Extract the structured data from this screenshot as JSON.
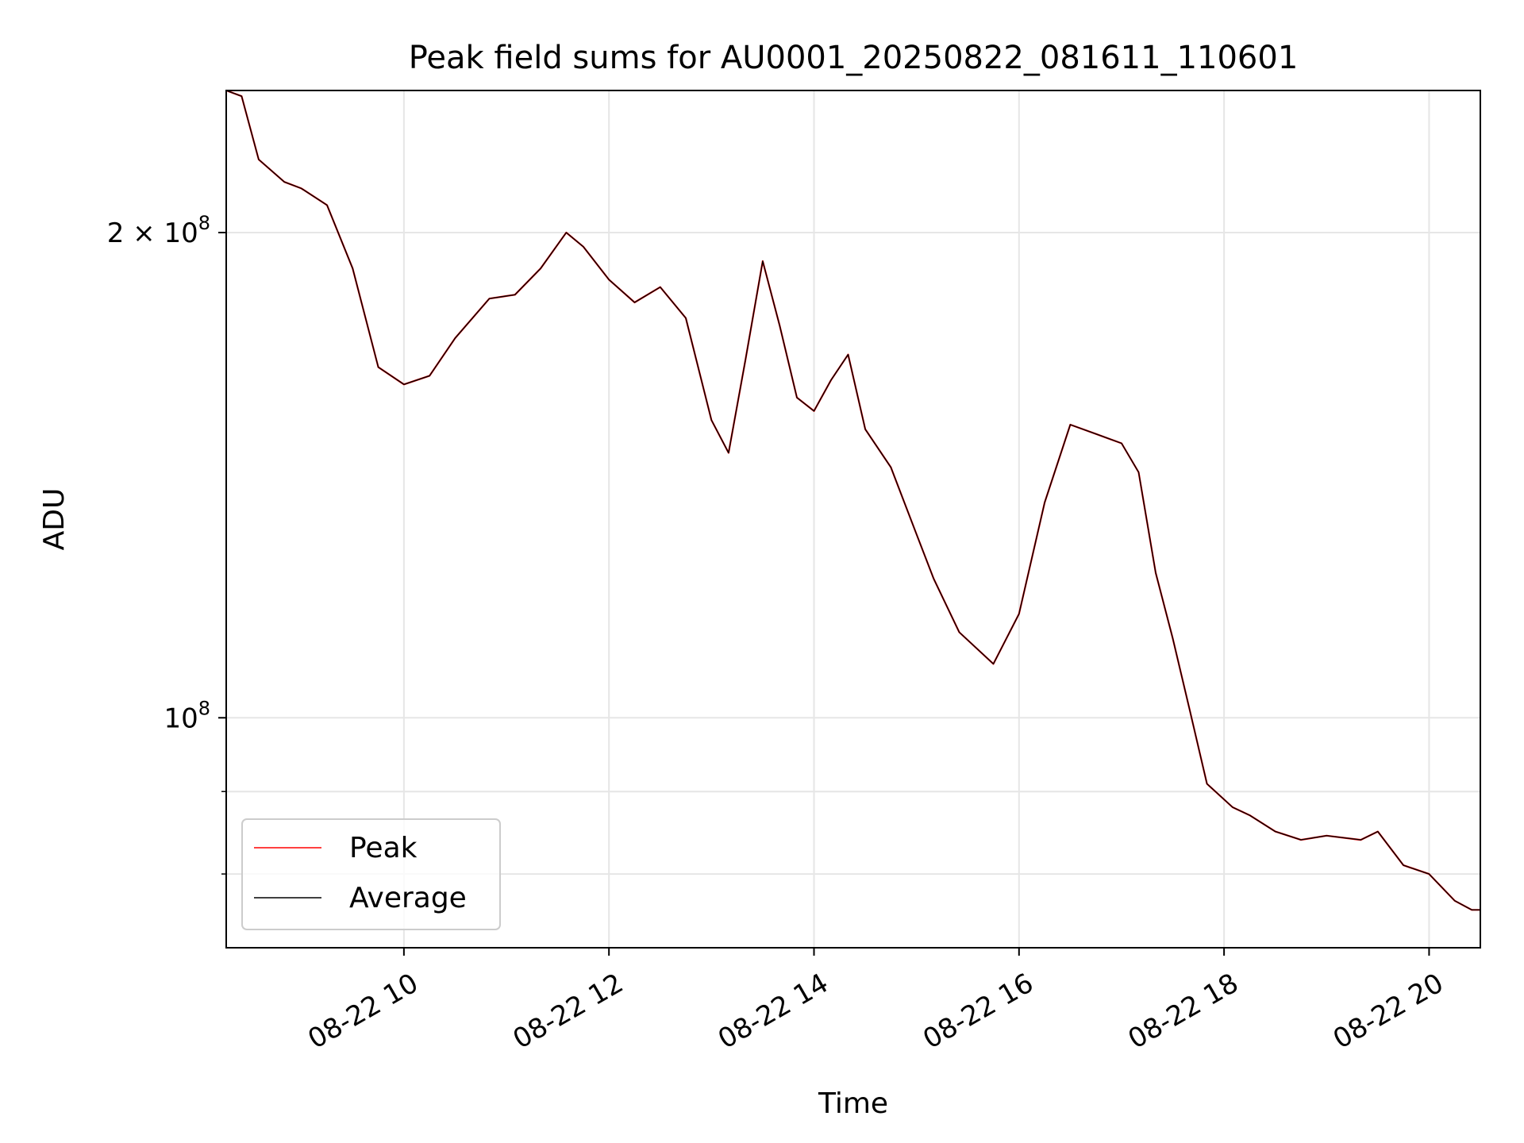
{
  "chart_data": {
    "type": "line",
    "title": "Peak field sums for AU0001_20250822_081611_110601",
    "xlabel": "Time",
    "ylabel": "ADU",
    "y_scale": "log",
    "xlim": [
      "2025-08-22 08:16",
      "2025-08-22 20:30"
    ],
    "ylim": [
      72000000,
      245000000
    ],
    "x_ticks": [
      "2025-08-22 10:00",
      "2025-08-22 12:00",
      "2025-08-22 14:00",
      "2025-08-22 16:00",
      "2025-08-22 18:00",
      "2025-08-22 20:00"
    ],
    "x_tick_labels": [
      "08-22 10",
      "08-22 12",
      "08-22 14",
      "08-22 16",
      "08-22 18",
      "08-22 20"
    ],
    "y_major_ticks": [
      100000000,
      200000000
    ],
    "y_tick_labels": [
      {
        "value": 200000000,
        "mantissa": "2",
        "times": "×",
        "base": "10",
        "exp": "8"
      },
      {
        "value": 100000000,
        "mantissa": "",
        "times": "",
        "base": "10",
        "exp": "8"
      }
    ],
    "y_minor_ticks": [
      80000000,
      90000000
    ],
    "grid": true,
    "legend_position": "lower-left",
    "series": [
      {
        "name": "Peak",
        "color": "#ff0000",
        "points": [
          [
            "2025-08-22 08:16",
            245000000
          ],
          [
            "2025-08-22 08:25",
            243000000
          ],
          [
            "2025-08-22 08:35",
            222000000
          ],
          [
            "2025-08-22 08:50",
            215000000
          ],
          [
            "2025-08-22 09:00",
            213000000
          ],
          [
            "2025-08-22 09:15",
            208000000
          ],
          [
            "2025-08-22 09:30",
            190000000
          ],
          [
            "2025-08-22 09:45",
            165000000
          ],
          [
            "2025-08-22 10:00",
            161000000
          ],
          [
            "2025-08-22 10:15",
            163000000
          ],
          [
            "2025-08-22 10:30",
            172000000
          ],
          [
            "2025-08-22 10:50",
            182000000
          ],
          [
            "2025-08-22 11:05",
            183000000
          ],
          [
            "2025-08-22 11:20",
            190000000
          ],
          [
            "2025-08-22 11:35",
            200000000
          ],
          [
            "2025-08-22 11:45",
            196000000
          ],
          [
            "2025-08-22 12:00",
            187000000
          ],
          [
            "2025-08-22 12:15",
            181000000
          ],
          [
            "2025-08-22 12:30",
            185000000
          ],
          [
            "2025-08-22 12:45",
            177000000
          ],
          [
            "2025-08-22 13:00",
            153000000
          ],
          [
            "2025-08-22 13:10",
            146000000
          ],
          [
            "2025-08-22 13:20",
            167000000
          ],
          [
            "2025-08-22 13:30",
            192000000
          ],
          [
            "2025-08-22 13:40",
            175000000
          ],
          [
            "2025-08-22 13:50",
            158000000
          ],
          [
            "2025-08-22 14:00",
            155000000
          ],
          [
            "2025-08-22 14:10",
            162000000
          ],
          [
            "2025-08-22 14:20",
            168000000
          ],
          [
            "2025-08-22 14:30",
            151000000
          ],
          [
            "2025-08-22 14:45",
            143000000
          ],
          [
            "2025-08-22 15:00",
            130000000
          ],
          [
            "2025-08-22 15:10",
            122000000
          ],
          [
            "2025-08-22 15:25",
            113000000
          ],
          [
            "2025-08-22 15:45",
            108000000
          ],
          [
            "2025-08-22 16:00",
            116000000
          ],
          [
            "2025-08-22 16:15",
            136000000
          ],
          [
            "2025-08-22 16:30",
            152000000
          ],
          [
            "2025-08-22 16:45",
            150000000
          ],
          [
            "2025-08-22 17:00",
            148000000
          ],
          [
            "2025-08-22 17:10",
            142000000
          ],
          [
            "2025-08-22 17:20",
            123000000
          ],
          [
            "2025-08-22 17:30",
            112000000
          ],
          [
            "2025-08-22 17:40",
            101000000
          ],
          [
            "2025-08-22 17:50",
            91000000
          ],
          [
            "2025-08-22 18:05",
            88000000
          ],
          [
            "2025-08-22 18:15",
            87000000
          ],
          [
            "2025-08-22 18:30",
            85000000
          ],
          [
            "2025-08-22 18:45",
            84000000
          ],
          [
            "2025-08-22 19:00",
            84500000
          ],
          [
            "2025-08-22 19:20",
            84000000
          ],
          [
            "2025-08-22 19:30",
            85000000
          ],
          [
            "2025-08-22 19:45",
            81000000
          ],
          [
            "2025-08-22 20:00",
            80000000
          ],
          [
            "2025-08-22 20:15",
            77000000
          ],
          [
            "2025-08-22 20:25",
            76000000
          ],
          [
            "2025-08-22 20:30",
            76000000
          ]
        ]
      },
      {
        "name": "Average",
        "color": "#000000",
        "points": [
          [
            "2025-08-22 08:16",
            245000000
          ],
          [
            "2025-08-22 08:25",
            243000000
          ],
          [
            "2025-08-22 08:35",
            222000000
          ],
          [
            "2025-08-22 08:50",
            215000000
          ],
          [
            "2025-08-22 09:00",
            213000000
          ],
          [
            "2025-08-22 09:15",
            208000000
          ],
          [
            "2025-08-22 09:30",
            190000000
          ],
          [
            "2025-08-22 09:45",
            165000000
          ],
          [
            "2025-08-22 10:00",
            161000000
          ],
          [
            "2025-08-22 10:15",
            163000000
          ],
          [
            "2025-08-22 10:30",
            172000000
          ],
          [
            "2025-08-22 10:50",
            182000000
          ],
          [
            "2025-08-22 11:05",
            183000000
          ],
          [
            "2025-08-22 11:20",
            190000000
          ],
          [
            "2025-08-22 11:35",
            200000000
          ],
          [
            "2025-08-22 11:45",
            196000000
          ],
          [
            "2025-08-22 12:00",
            187000000
          ],
          [
            "2025-08-22 12:15",
            181000000
          ],
          [
            "2025-08-22 12:30",
            185000000
          ],
          [
            "2025-08-22 12:45",
            177000000
          ],
          [
            "2025-08-22 13:00",
            153000000
          ],
          [
            "2025-08-22 13:10",
            146000000
          ],
          [
            "2025-08-22 13:20",
            167000000
          ],
          [
            "2025-08-22 13:30",
            192000000
          ],
          [
            "2025-08-22 13:40",
            175000000
          ],
          [
            "2025-08-22 13:50",
            158000000
          ],
          [
            "2025-08-22 14:00",
            155000000
          ],
          [
            "2025-08-22 14:10",
            162000000
          ],
          [
            "2025-08-22 14:20",
            168000000
          ],
          [
            "2025-08-22 14:30",
            151000000
          ],
          [
            "2025-08-22 14:45",
            143000000
          ],
          [
            "2025-08-22 15:00",
            130000000
          ],
          [
            "2025-08-22 15:10",
            122000000
          ],
          [
            "2025-08-22 15:25",
            113000000
          ],
          [
            "2025-08-22 15:45",
            108000000
          ],
          [
            "2025-08-22 16:00",
            116000000
          ],
          [
            "2025-08-22 16:15",
            136000000
          ],
          [
            "2025-08-22 16:30",
            152000000
          ],
          [
            "2025-08-22 16:45",
            150000000
          ],
          [
            "2025-08-22 17:00",
            148000000
          ],
          [
            "2025-08-22 17:10",
            142000000
          ],
          [
            "2025-08-22 17:20",
            123000000
          ],
          [
            "2025-08-22 17:30",
            112000000
          ],
          [
            "2025-08-22 17:40",
            101000000
          ],
          [
            "2025-08-22 17:50",
            91000000
          ],
          [
            "2025-08-22 18:05",
            88000000
          ],
          [
            "2025-08-22 18:15",
            87000000
          ],
          [
            "2025-08-22 18:30",
            85000000
          ],
          [
            "2025-08-22 18:45",
            84000000
          ],
          [
            "2025-08-22 19:00",
            84500000
          ],
          [
            "2025-08-22 19:20",
            84000000
          ],
          [
            "2025-08-22 19:30",
            85000000
          ],
          [
            "2025-08-22 19:45",
            81000000
          ],
          [
            "2025-08-22 20:00",
            80000000
          ],
          [
            "2025-08-22 20:15",
            77000000
          ],
          [
            "2025-08-22 20:25",
            76000000
          ],
          [
            "2025-08-22 20:30",
            76000000
          ]
        ]
      }
    ]
  }
}
